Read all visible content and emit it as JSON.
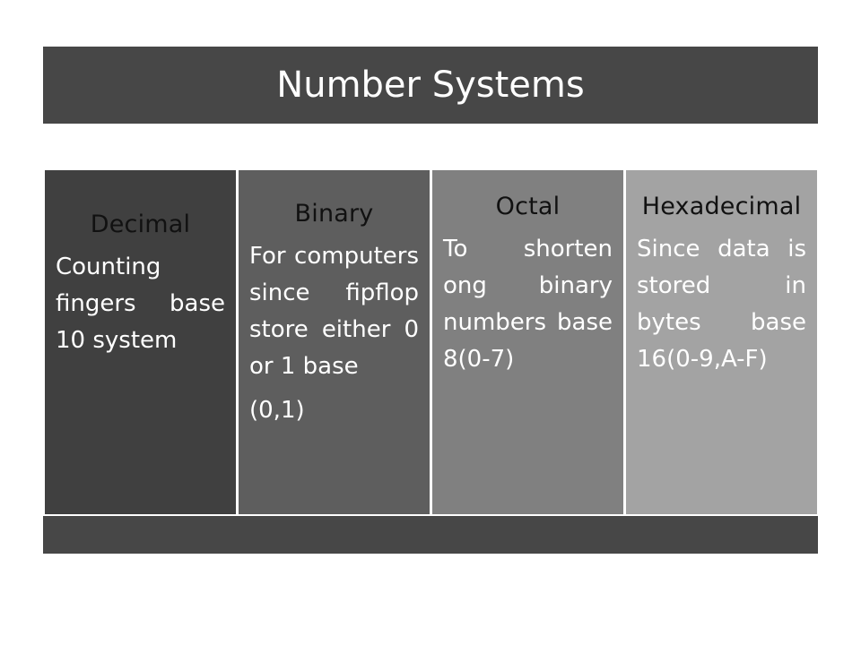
{
  "slide": {
    "title": "Number Systems"
  },
  "panels": [
    {
      "heading": "Decimal",
      "body": "Counting fingers base 10 system",
      "extra": ""
    },
    {
      "heading": "Binary",
      "body": "For computers since fipflop store either 0 or 1 base",
      "extra": "(0,1)"
    },
    {
      "heading": "Octal",
      "body": "To shorten ong binary numbers base 8(0-7)",
      "extra": ""
    },
    {
      "heading": "Hexadecimal",
      "body": "Since data is stored in bytes base 16(0-9,A-F)",
      "extra": ""
    }
  ],
  "colors": {
    "title_bar": "#474747",
    "panel_1": "#404040",
    "panel_2": "#5e5e5e",
    "panel_3": "#808080",
    "panel_4": "#a3a3a3"
  }
}
